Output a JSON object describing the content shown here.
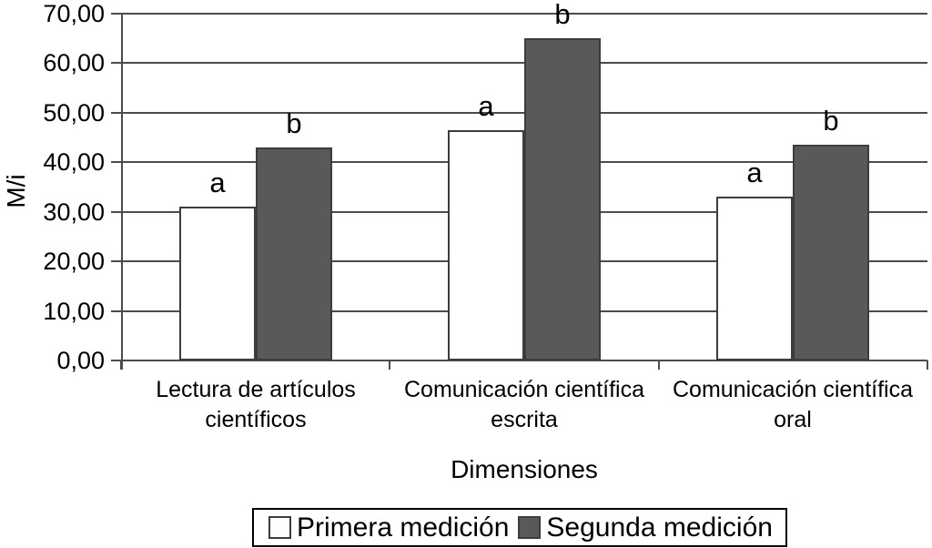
{
  "chart_data": {
    "type": "bar",
    "title": "",
    "ylabel": "M/i",
    "xlabel": "Dimensiones",
    "ylim": [
      0,
      70
    ],
    "ytick_step": 10,
    "ytick_labels_top_to_bottom": [
      "70,00",
      "60,00",
      "50,00",
      "40,00",
      "30,00",
      "20,00",
      "10,00",
      "0,00"
    ],
    "grid": true,
    "legend_position": "bottom",
    "categories": [
      "Lectura de artículos científicos",
      "Comunicación científica escrita",
      "Comunicación científica oral"
    ],
    "series": [
      {
        "name": "Primera medición",
        "annotation": "a",
        "fill": "#ffffff",
        "values": [
          31,
          46.5,
          33
        ]
      },
      {
        "name": "Segunda medición",
        "annotation": "b",
        "fill": "#595959",
        "values": [
          43,
          65,
          43.5
        ]
      }
    ]
  },
  "colors": {
    "axis": "#4c4c4c",
    "grid": "#4c4c4c",
    "bar_border": "#3d3d3d",
    "text": "#000000",
    "primera_fill": "#ffffff",
    "segunda_fill": "#595959"
  }
}
